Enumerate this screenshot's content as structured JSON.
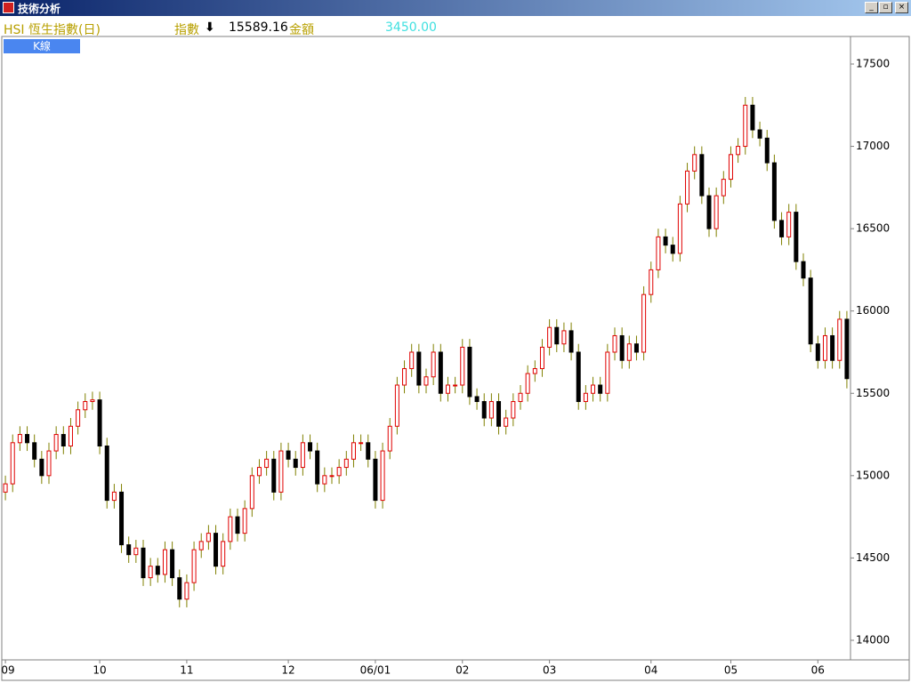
{
  "window": {
    "title": "技術分析"
  },
  "header": {
    "symbol": "HSI 恆生指數(日)",
    "index_label": "指數",
    "index_value": "15589.16",
    "amount_label": "金額",
    "amount_value": "3450.00",
    "tab": "K線"
  },
  "chart_data": {
    "type": "candlestick",
    "categories": [
      "09",
      null,
      null,
      null,
      null,
      null,
      null,
      null,
      null,
      null,
      null,
      null,
      null,
      "10",
      null,
      null,
      null,
      null,
      null,
      null,
      null,
      null,
      null,
      null,
      null,
      "11",
      null,
      null,
      null,
      null,
      null,
      null,
      null,
      null,
      null,
      null,
      null,
      null,
      null,
      "12",
      null,
      null,
      null,
      null,
      null,
      null,
      null,
      null,
      null,
      null,
      null,
      "06/01",
      null,
      null,
      null,
      null,
      null,
      null,
      null,
      null,
      null,
      null,
      null,
      "02",
      null,
      null,
      null,
      null,
      null,
      null,
      null,
      null,
      null,
      null,
      null,
      "03",
      null,
      null,
      null,
      null,
      null,
      null,
      null,
      null,
      null,
      null,
      null,
      null,
      null,
      "04",
      null,
      null,
      null,
      null,
      null,
      null,
      null,
      null,
      null,
      null,
      "05",
      null,
      null,
      null,
      null,
      null,
      null,
      null,
      null,
      null,
      null,
      null,
      "06",
      null,
      null,
      null,
      null
    ],
    "open": [
      14900,
      14950,
      15200,
      15250,
      15200,
      15100,
      15000,
      15150,
      15250,
      15180,
      15300,
      15400,
      15450,
      15460,
      15180,
      14850,
      14900,
      14580,
      14520,
      14560,
      14380,
      14450,
      14400,
      14550,
      14380,
      14250,
      14350,
      14550,
      14600,
      14650,
      14450,
      14600,
      14750,
      14650,
      14800,
      15000,
      15050,
      15100,
      14900,
      15150,
      15100,
      15050,
      15200,
      15150,
      14950,
      15000,
      15000,
      15050,
      15100,
      15200,
      15200,
      15100,
      14850,
      15150,
      15300,
      15550,
      15650,
      15750,
      15550,
      15600,
      15750,
      15500,
      15550,
      15550,
      15780,
      15480,
      15450,
      15350,
      15450,
      15300,
      15350,
      15450,
      15500,
      15620,
      15650,
      15780,
      15900,
      15800,
      15880,
      15750,
      15450,
      15500,
      15550,
      15500,
      15750,
      15850,
      15700,
      15800,
      15750,
      16100,
      16250,
      16450,
      16400,
      16350,
      16650,
      16850,
      16950,
      16700,
      16500,
      16700,
      16800,
      16950,
      17000,
      17250,
      17100,
      17050,
      16900,
      16550,
      16450,
      16600,
      16300,
      16200,
      15800,
      15700,
      15850,
      15700,
      15950
    ],
    "high": [
      15000,
      15250,
      15300,
      15300,
      15250,
      15150,
      15200,
      15300,
      15300,
      15350,
      15450,
      15500,
      15510,
      15510,
      15230,
      14950,
      14950,
      14630,
      14610,
      14610,
      14500,
      14500,
      14600,
      14600,
      14430,
      14400,
      14600,
      14650,
      14700,
      14700,
      14650,
      14800,
      14800,
      14850,
      15050,
      15100,
      15150,
      15150,
      15200,
      15200,
      15150,
      15250,
      15250,
      15200,
      15050,
      15050,
      15100,
      15150,
      15250,
      15250,
      15250,
      15150,
      15200,
      15350,
      15600,
      15700,
      15800,
      15800,
      15650,
      15800,
      15800,
      15600,
      15600,
      15830,
      15830,
      15530,
      15500,
      15500,
      15500,
      15400,
      15500,
      15550,
      15670,
      15700,
      15830,
      15950,
      15950,
      15930,
      15930,
      15800,
      15550,
      15600,
      15600,
      15800,
      15900,
      15900,
      15850,
      15850,
      16150,
      16300,
      16500,
      16500,
      16450,
      16700,
      16900,
      17000,
      17000,
      16750,
      16750,
      16850,
      17000,
      17050,
      17300,
      17300,
      17150,
      17100,
      16950,
      16600,
      16650,
      16650,
      16350,
      16250,
      15850,
      15900,
      15900,
      16000,
      16000
    ],
    "low": [
      14850,
      14900,
      15150,
      15150,
      15050,
      14950,
      14950,
      15100,
      15130,
      15130,
      15250,
      15350,
      15400,
      15130,
      14800,
      14800,
      14530,
      14470,
      14470,
      14330,
      14330,
      14350,
      14350,
      14330,
      14200,
      14200,
      14300,
      14500,
      14550,
      14400,
      14400,
      14550,
      14600,
      14600,
      14750,
      14950,
      15000,
      14850,
      14850,
      15050,
      15000,
      15000,
      15100,
      14900,
      14900,
      14950,
      14950,
      15000,
      15050,
      15150,
      15050,
      14800,
      14800,
      15100,
      15250,
      15500,
      15600,
      15500,
      15500,
      15550,
      15450,
      15450,
      15500,
      15500,
      15430,
      15400,
      15300,
      15300,
      15250,
      15250,
      15300,
      15400,
      15450,
      15570,
      15600,
      15730,
      15750,
      15750,
      15700,
      15400,
      15400,
      15450,
      15450,
      15450,
      15700,
      15650,
      15650,
      15700,
      15700,
      16050,
      16200,
      16350,
      16300,
      16300,
      16600,
      16800,
      16650,
      16450,
      16450,
      16650,
      16750,
      16900,
      16950,
      17050,
      17000,
      16850,
      16500,
      16400,
      16400,
      16250,
      16150,
      15750,
      15650,
      15650,
      15650,
      15650,
      15530
    ],
    "close": [
      14950,
      15200,
      15250,
      15200,
      15100,
      15000,
      15150,
      15250,
      15180,
      15300,
      15400,
      15450,
      15460,
      15180,
      14850,
      14900,
      14580,
      14520,
      14560,
      14380,
      14450,
      14400,
      14550,
      14380,
      14250,
      14350,
      14550,
      14600,
      14650,
      14450,
      14600,
      14750,
      14650,
      14800,
      15000,
      15050,
      15100,
      14900,
      15150,
      15100,
      15050,
      15200,
      15150,
      14950,
      15000,
      15000,
      15050,
      15100,
      15200,
      15200,
      15100,
      14850,
      15150,
      15300,
      15550,
      15650,
      15750,
      15550,
      15600,
      15750,
      15500,
      15550,
      15550,
      15780,
      15480,
      15450,
      15350,
      15450,
      15300,
      15350,
      15450,
      15500,
      15620,
      15650,
      15780,
      15900,
      15800,
      15880,
      15750,
      15450,
      15500,
      15550,
      15500,
      15750,
      15850,
      15700,
      15800,
      15750,
      16100,
      16250,
      16450,
      16400,
      16350,
      16650,
      16850,
      16950,
      16700,
      16500,
      16700,
      16800,
      16950,
      17000,
      17250,
      17100,
      17050,
      16900,
      16550,
      16450,
      16600,
      16300,
      16200,
      15800,
      15700,
      15850,
      15700,
      15950,
      15589.16
    ],
    "ylim": [
      13881,
      17662
    ],
    "yticks": [
      14000,
      14500,
      15000,
      15500,
      16000,
      16500,
      17000,
      17500
    ],
    "up_color": "#e00000",
    "down_color": "#000000",
    "wick_color": "#808000"
  }
}
